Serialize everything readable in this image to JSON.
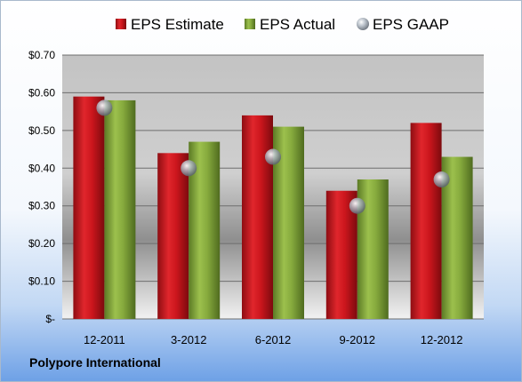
{
  "footer": {
    "company": "Polypore International"
  },
  "colors": {
    "estimate": "#c0141c",
    "actual": "#7fa23a",
    "gaap": "#9aa3ad",
    "bg_top": "#ffffff",
    "bg_bottom": "#6da0e6"
  },
  "chart_data": {
    "type": "bar",
    "categories": [
      "12-2011",
      "3-2012",
      "6-2012",
      "9-2012",
      "12-2012"
    ],
    "series": [
      {
        "name": "EPS Estimate",
        "kind": "bar",
        "values": [
          0.59,
          0.44,
          0.54,
          0.34,
          0.52
        ]
      },
      {
        "name": "EPS Actual",
        "kind": "bar",
        "values": [
          0.58,
          0.47,
          0.51,
          0.37,
          0.43
        ]
      },
      {
        "name": "EPS GAAP",
        "kind": "marker",
        "values": [
          0.56,
          0.4,
          0.43,
          0.3,
          0.37
        ]
      }
    ],
    "ylim": [
      0,
      0.7
    ],
    "yticks": [
      0,
      0.1,
      0.2,
      0.3,
      0.4,
      0.5,
      0.6,
      0.7
    ],
    "ytick_labels": [
      "$-",
      "$0.10",
      "$0.20",
      "$0.30",
      "$0.40",
      "$0.50",
      "$0.60",
      "$0.70"
    ],
    "grid": true,
    "legend": "top"
  }
}
